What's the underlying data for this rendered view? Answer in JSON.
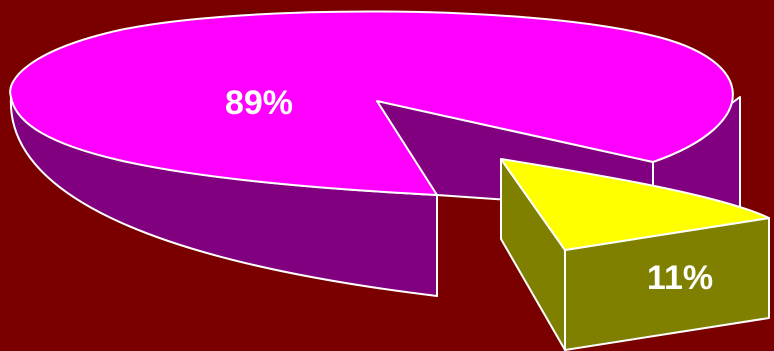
{
  "chart_data": {
    "type": "pie",
    "style": "3d-exploded",
    "background": "#7a0000",
    "outline_color": "#ffffff",
    "slices": [
      {
        "value": 89,
        "label": "89%",
        "top_color": "#ff00ff",
        "side_color": "#800080"
      },
      {
        "value": 11,
        "label": "11%",
        "top_color": "#ffff00",
        "side_color": "#808000",
        "exploded": true
      }
    ]
  }
}
